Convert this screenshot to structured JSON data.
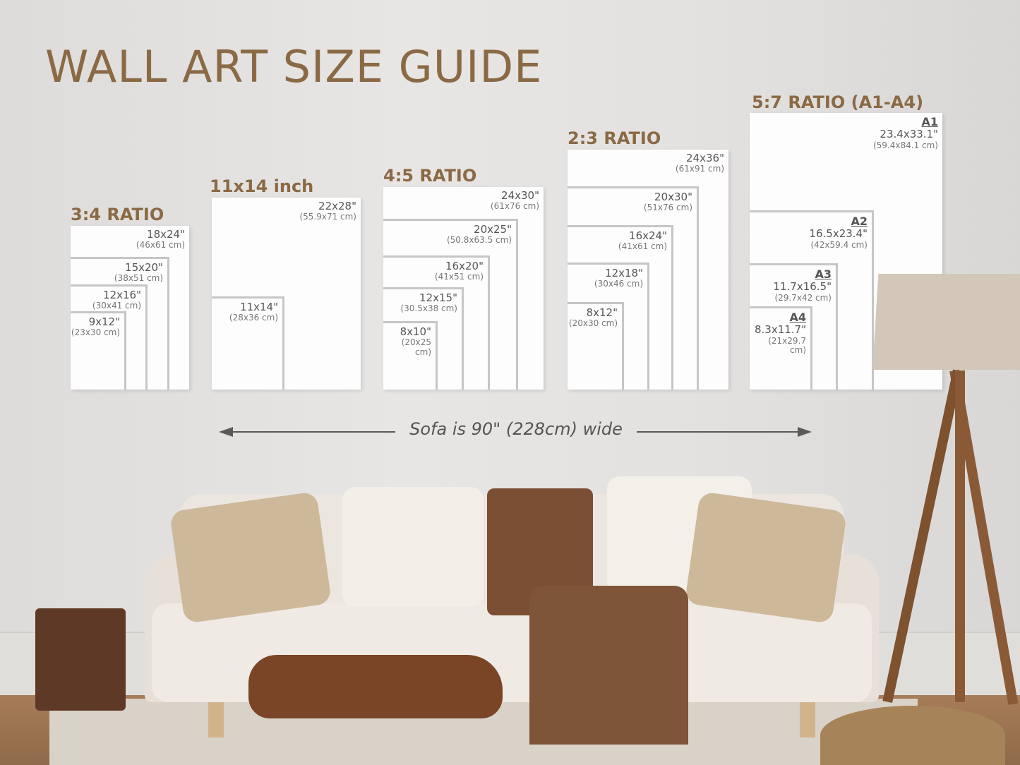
{
  "title": "WALL ART SIZE GUIDE",
  "groups": [
    {
      "heading": "3:4 RATIO",
      "sizes": [
        {
          "in": "18x24\"",
          "cm": "(46x61 cm)"
        },
        {
          "in": "15x20\"",
          "cm": "(38x51 cm)"
        },
        {
          "in": "12x16\"",
          "cm": "(30x41 cm)"
        },
        {
          "in": "9x12\"",
          "cm": "(23x30 cm)"
        }
      ]
    },
    {
      "heading": "11x14 inch",
      "sizes": [
        {
          "in": "22x28\"",
          "cm": "(55.9x71 cm)"
        },
        {
          "in": "11x14\"",
          "cm": "(28x36 cm)"
        }
      ]
    },
    {
      "heading": "4:5 RATIO",
      "sizes": [
        {
          "in": "24x30\"",
          "cm": "(61x76 cm)"
        },
        {
          "in": "20x25\"",
          "cm": "(50.8x63.5 cm)"
        },
        {
          "in": "16x20\"",
          "cm": "(41x51 cm)"
        },
        {
          "in": "12x15\"",
          "cm": "(30.5x38 cm)"
        },
        {
          "in": "8x10\"",
          "cm": "(20x25 cm)"
        }
      ]
    },
    {
      "heading": "2:3 RATIO",
      "sizes": [
        {
          "in": "24x36\"",
          "cm": "(61x91 cm)"
        },
        {
          "in": "20x30\"",
          "cm": "(51x76 cm)"
        },
        {
          "in": "16x24\"",
          "cm": "(41x61 cm)"
        },
        {
          "in": "12x18\"",
          "cm": "(30x46 cm)"
        },
        {
          "in": "8x12\"",
          "cm": "(20x30 cm)"
        }
      ]
    },
    {
      "heading": "5:7 RATIO (A1-A4)",
      "sizes": [
        {
          "iso": "A1",
          "in": "23.4x33.1\"",
          "cm": "(59.4x84.1 cm)"
        },
        {
          "iso": "A2",
          "in": "16.5x23.4\"",
          "cm": "(42x59.4 cm)"
        },
        {
          "iso": "A3",
          "in": "11.7x16.5\"",
          "cm": "(29.7x42 cm)"
        },
        {
          "iso": "A4",
          "in": "8.3x11.7\"",
          "cm": "(21x29.7 cm)"
        }
      ]
    }
  ],
  "sofa_note": "Sofa is 90\" (228cm) wide",
  "colors": {
    "heading": "#8a6a45",
    "frame": "#fdfdfd",
    "frame_border": "#c6c6c6"
  }
}
